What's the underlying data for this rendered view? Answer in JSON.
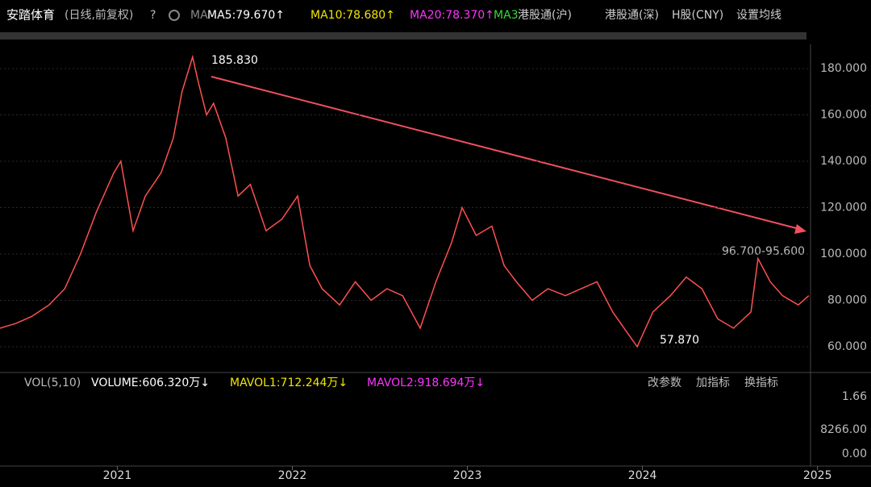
{
  "header": {
    "stock": "安踏体育",
    "mode": "(日线,前复权)",
    "help": "?",
    "ma": "MA",
    "ma5": "MA5:79.670↑",
    "ma10": "MA10:78.680↑",
    "ma20": "MA20:78.370↑",
    "ma3": "MA3",
    "hk_sh": "港股通(沪)",
    "hk_sz": "港股通(深)",
    "h_share": "H股(CNY)",
    "settings": "设置均线"
  },
  "volume_panel": {
    "name": "VOL(5,10)",
    "volume": "VOLUME:606.320万↓",
    "mavol1": "MAVOL1:712.244万↓",
    "mavol2": "MAVOL2:918.694万↓",
    "edit": "改参数",
    "add": "加指标",
    "switch": "换指标",
    "tick_labels": [
      "1.66",
      "8266.00",
      "0.00"
    ]
  },
  "chart_data": {
    "type": "line",
    "x": [
      2020.33,
      2020.42,
      2020.51,
      2020.61,
      2020.7,
      2020.79,
      2020.88,
      2020.98,
      2021.02,
      2021.09,
      2021.16,
      2021.25,
      2021.32,
      2021.37,
      2021.43,
      2021.46,
      2021.51,
      2021.55,
      2021.62,
      2021.69,
      2021.76,
      2021.85,
      2021.94,
      2022.03,
      2022.1,
      2022.17,
      2022.27,
      2022.36,
      2022.45,
      2022.54,
      2022.63,
      2022.73,
      2022.82,
      2022.91,
      2022.97,
      2023.05,
      2023.14,
      2023.21,
      2023.28,
      2023.37,
      2023.46,
      2023.56,
      2023.65,
      2023.74,
      2023.83,
      2023.97,
      2024.06,
      2024.16,
      2024.25,
      2024.34,
      2024.43,
      2024.52,
      2024.62,
      2024.66,
      2024.73,
      2024.8,
      2024.89,
      2024.95
    ],
    "series": [
      {
        "color": "#ff5050",
        "values": [
          68,
          70,
          73,
          78,
          85,
          100,
          118,
          135,
          140,
          110,
          125,
          135,
          150,
          170,
          185,
          175,
          160,
          165,
          150,
          125,
          130,
          110,
          115,
          125,
          95,
          85,
          78,
          88,
          80,
          85,
          82,
          68,
          88,
          105,
          120,
          108,
          112,
          95,
          88,
          80,
          85,
          82,
          85,
          88,
          75,
          60,
          75,
          82,
          90,
          85,
          72,
          68,
          75,
          98,
          88,
          82,
          78,
          82
        ]
      }
    ],
    "xlim": [
      2020.33,
      2024.96
    ],
    "xticks": [
      2021,
      2022,
      2023,
      2024,
      2025
    ],
    "ylim": [
      51.3,
      193.9
    ],
    "yticks": [
      {
        "value": 60,
        "label": "60.000"
      },
      {
        "value": 80,
        "label": "80.000"
      },
      {
        "value": 100,
        "label": "100.000"
      },
      {
        "value": 120,
        "label": "120.000"
      },
      {
        "value": 140,
        "label": "140.000"
      },
      {
        "value": 160,
        "label": "160.000"
      },
      {
        "value": 180,
        "label": "180.000"
      }
    ],
    "grid": true,
    "annotations": [
      "185.830",
      "57.870",
      "96.700-95.600"
    ]
  }
}
